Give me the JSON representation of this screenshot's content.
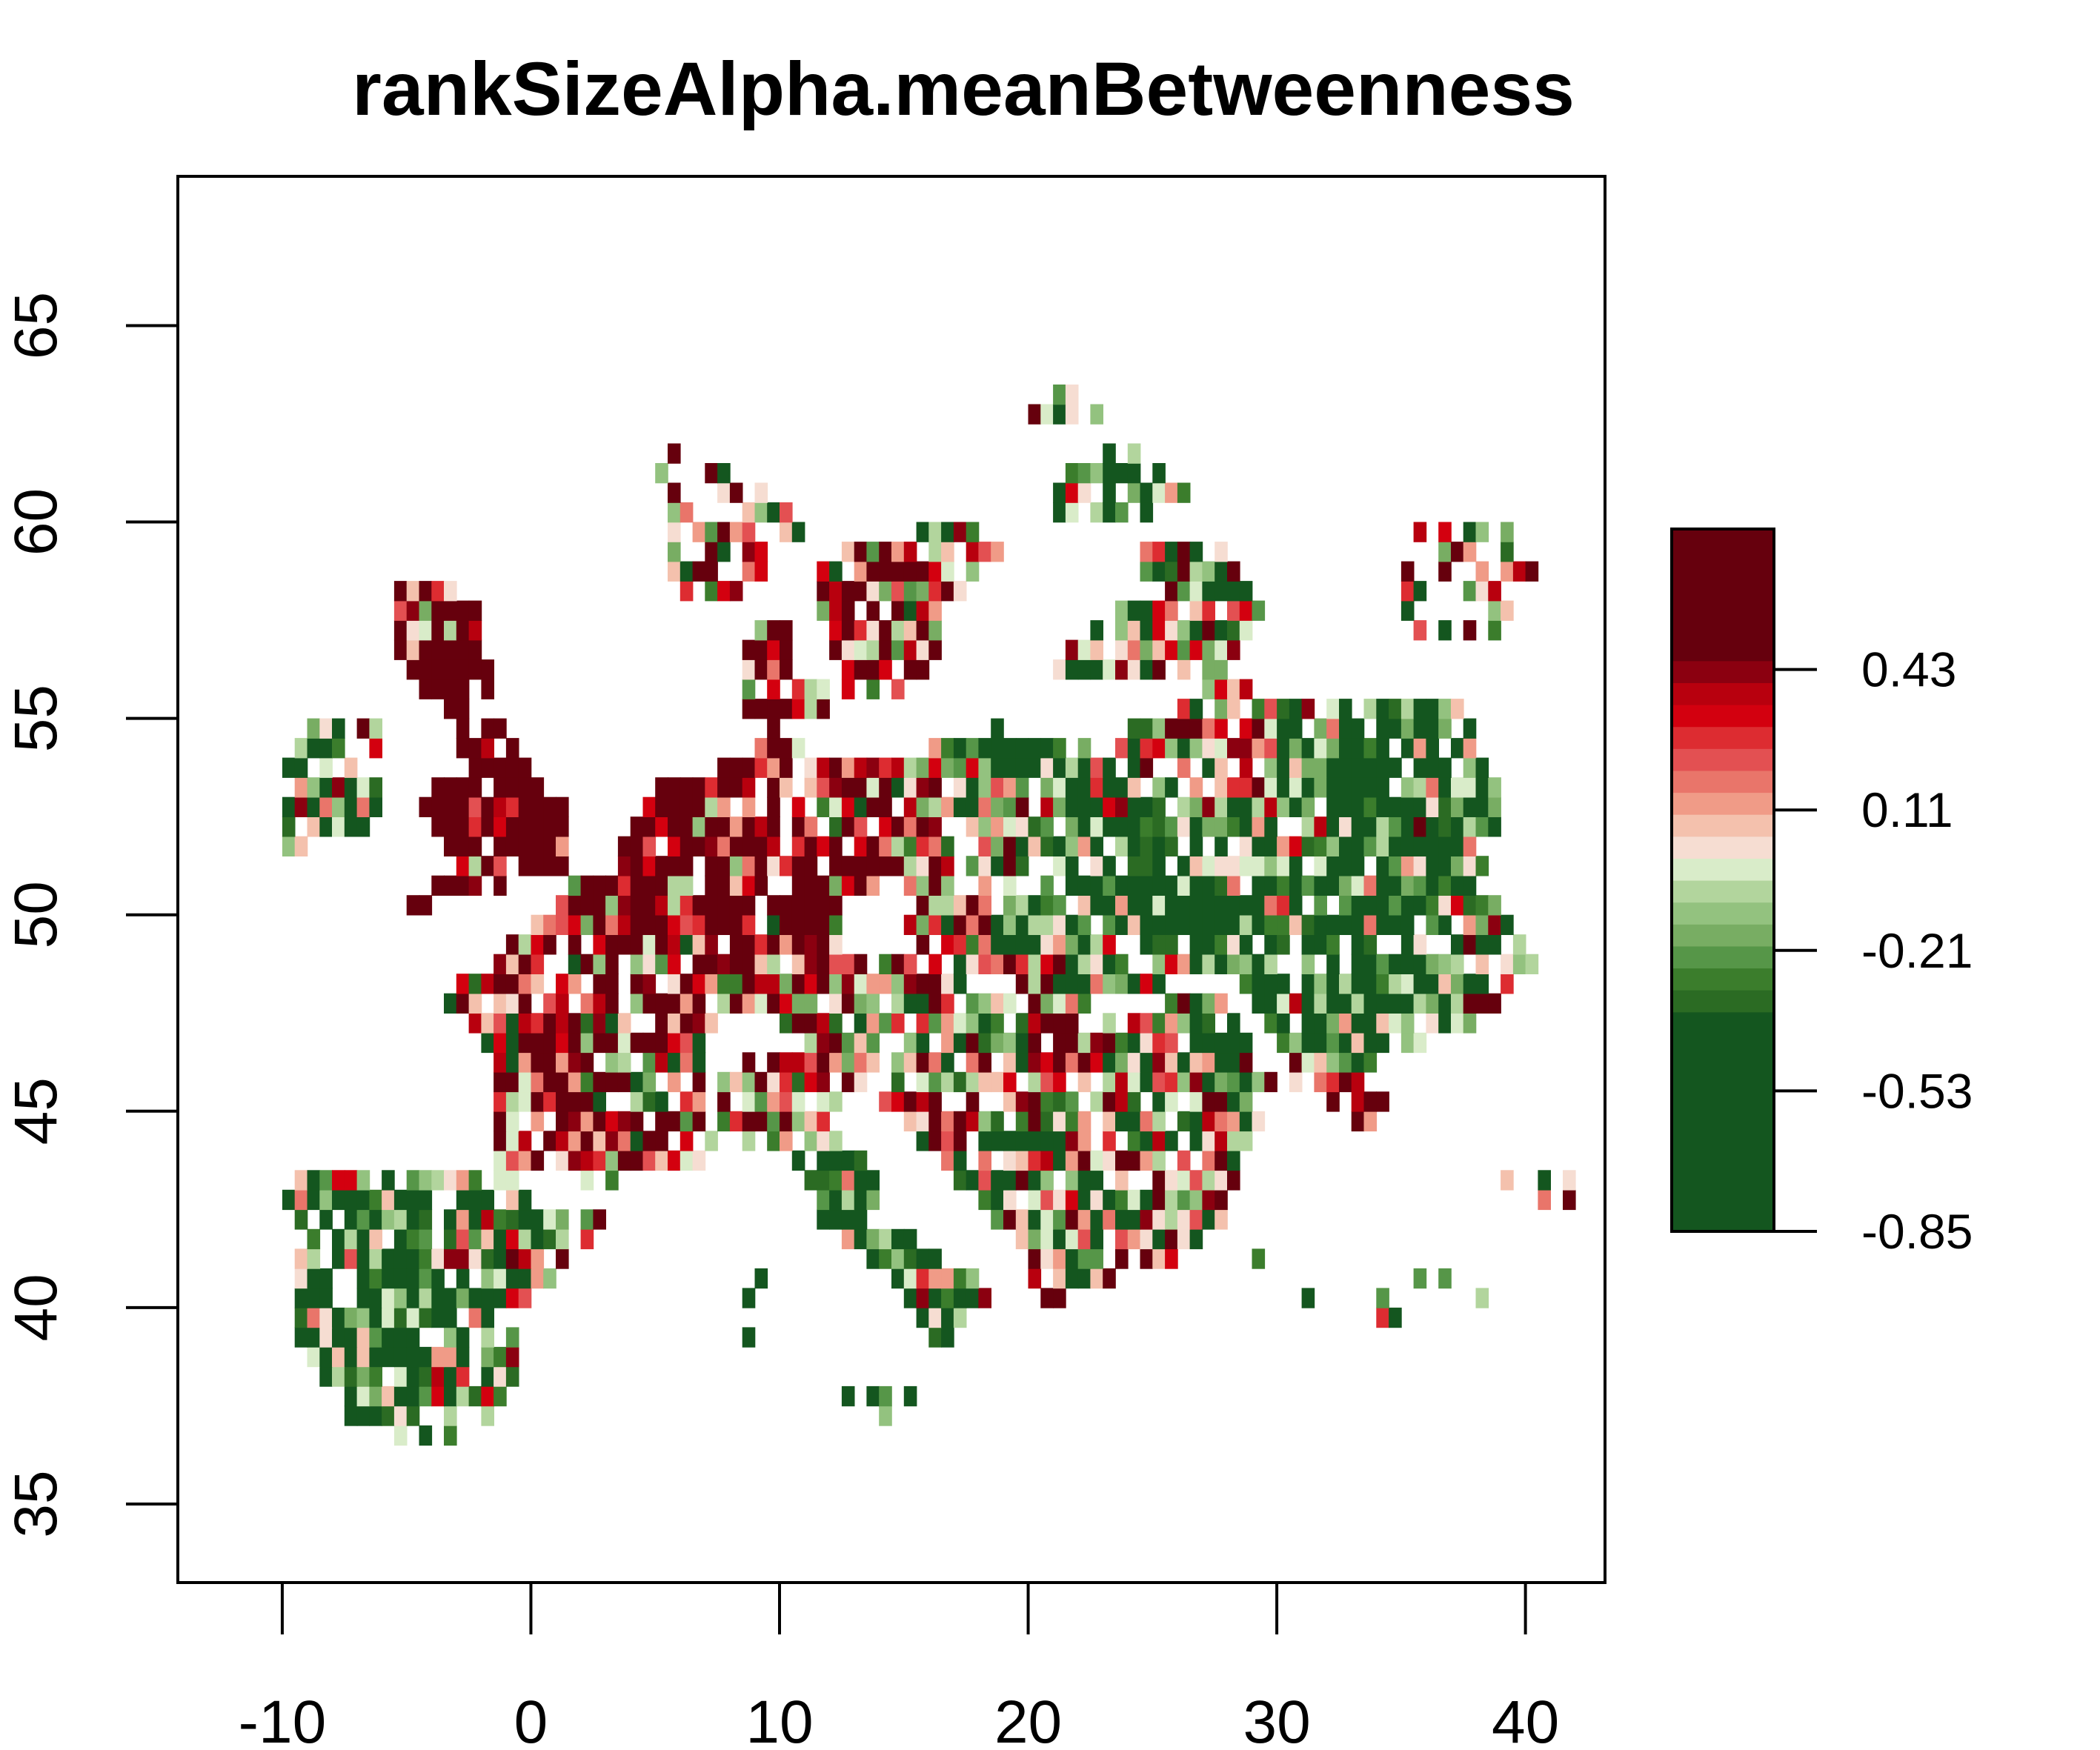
{
  "chart_data": {
    "type": "heatmap",
    "title": "rankSizeAlpha.meanBetweenness",
    "xlabel": "",
    "ylabel": "",
    "xlim": [
      -14.2,
      43.2
    ],
    "ylim": [
      33,
      68.8
    ],
    "x_ticks": [
      -10,
      0,
      10,
      20,
      30,
      40
    ],
    "y_ticks": [
      35,
      40,
      45,
      50,
      55,
      60,
      65
    ],
    "x_tick_labels": [
      "-10",
      "0",
      "10",
      "20",
      "30",
      "40"
    ],
    "y_tick_labels": [
      "35",
      "40",
      "45",
      "50",
      "55",
      "60",
      "65"
    ],
    "cell_size_deg": 0.5,
    "grid": false,
    "value_range": [
      -0.85,
      0.75
    ],
    "colorscale": {
      "breaks": [
        -0.85,
        -0.4,
        -0.35,
        -0.3,
        -0.25,
        -0.2,
        -0.15,
        -0.1,
        -0.05,
        0.0,
        0.05,
        0.1,
        0.15,
        0.2,
        0.25,
        0.3,
        0.35,
        0.4,
        0.45,
        0.75
      ],
      "colors": [
        "#14561f",
        "#14561f",
        "#2b6b23",
        "#3b7d2c",
        "#569648",
        "#78ad63",
        "#93c27f",
        "#b2d59d",
        "#d9ecc9",
        "#f6ddd2",
        "#f4c1ad",
        "#f09b87",
        "#e9756a",
        "#e35052",
        "#dd2c31",
        "#d3000f",
        "#b8000e",
        "#8b0010",
        "#66000d"
      ]
    },
    "legend": {
      "position": "right",
      "ticks": [
        0.43,
        0.11,
        -0.21,
        -0.53,
        -0.85
      ],
      "tick_labels": [
        "0.43",
        "0.11",
        "-0.21",
        "-0.53",
        "-0.85"
      ]
    }
  }
}
